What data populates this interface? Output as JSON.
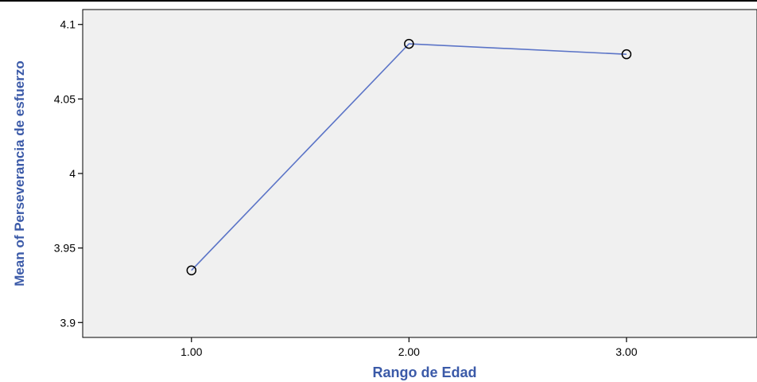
{
  "chart_data": {
    "type": "line",
    "xlabel": "Rango de Edad",
    "ylabel": "Mean of Perseverancia de esfuerzo",
    "categories": [
      "1.00",
      "2.00",
      "3.00"
    ],
    "series": [
      {
        "values": [
          3.935,
          4.087,
          4.08
        ]
      }
    ],
    "yticks": [
      "3.9",
      "3.95",
      "4",
      "4.05",
      "4.1"
    ],
    "ylim": [
      3.89,
      4.11
    ],
    "xlim": [
      0.5,
      3.6
    ],
    "grid": false,
    "colors": {
      "line": "#5b74c7",
      "plot_bg": "#f0f0f0",
      "axis_title": "#3b5aa8",
      "marker": "#000000"
    }
  }
}
